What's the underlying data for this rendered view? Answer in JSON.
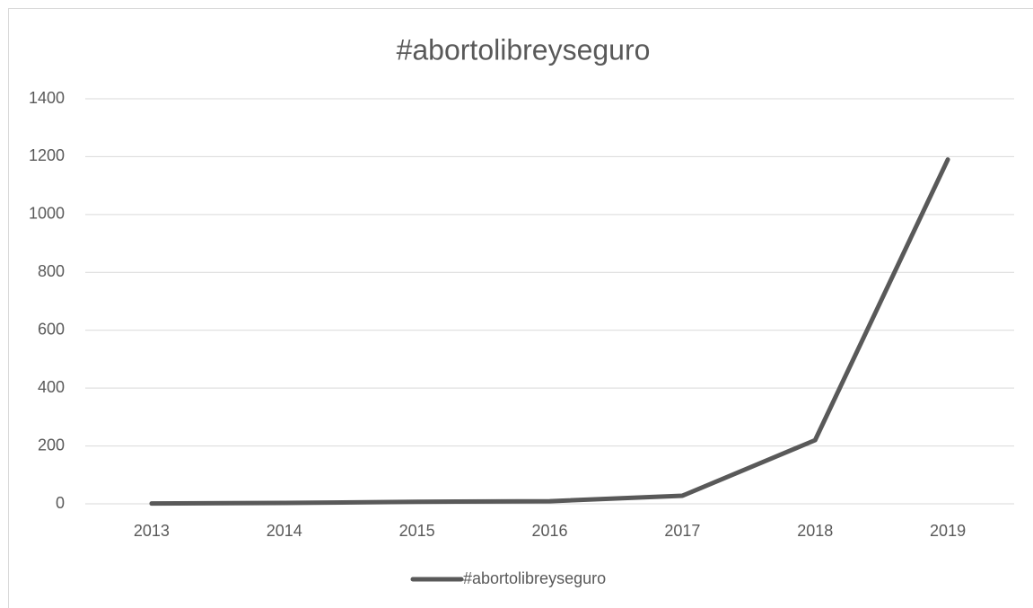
{
  "chart_data": {
    "type": "line",
    "title": "#abortolibreyseguro",
    "categories": [
      "2013",
      "2014",
      "2015",
      "2016",
      "2017",
      "2018",
      "2019"
    ],
    "series": [
      {
        "name": "#abortolibreyseguro",
        "color": "#595959",
        "values": [
          1,
          3,
          7,
          9,
          28,
          220,
          1190
        ]
      }
    ],
    "ylim": [
      0,
      1400
    ],
    "yticks": [
      0,
      200,
      400,
      600,
      800,
      1000,
      1200,
      1400
    ],
    "grid": true,
    "legend": "bottom"
  }
}
